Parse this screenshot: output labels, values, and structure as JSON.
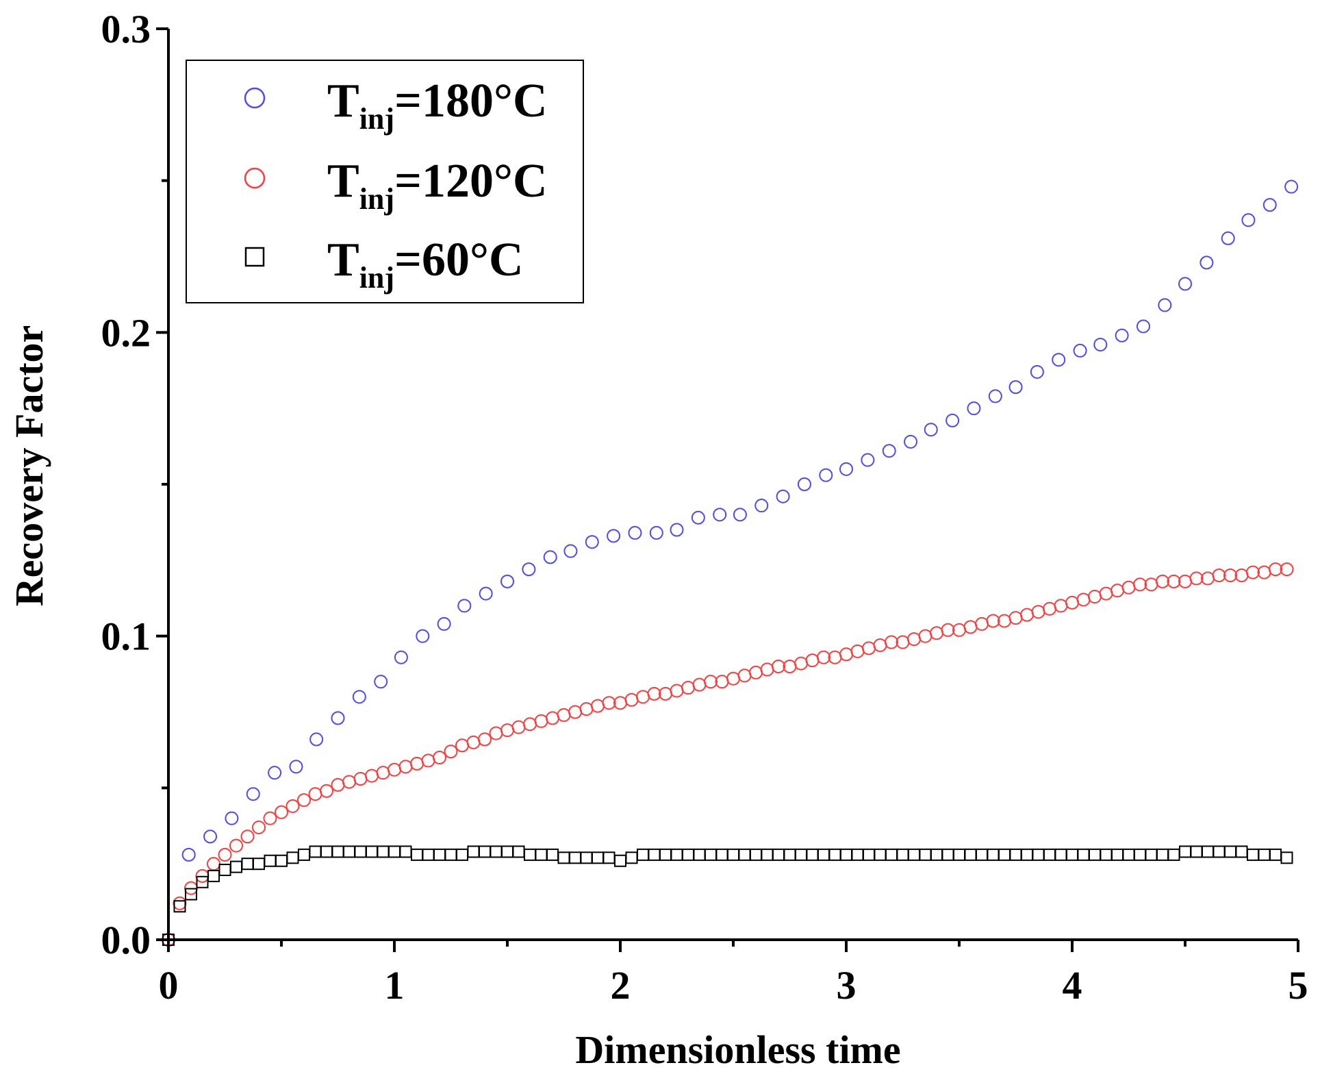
{
  "colors": {
    "t180": "#4a4aff",
    "t120": "#ff3b3b",
    "t60": "#000000",
    "axis": "#000000",
    "background": "#ffffff"
  },
  "chart_data": {
    "type": "scatter",
    "title": "",
    "xlabel": "Dimensionless time",
    "ylabel": "Recovery Factor",
    "xlim": [
      0,
      5
    ],
    "ylim": [
      0,
      0.3
    ],
    "x_ticks": [
      0,
      1,
      2,
      3,
      4,
      5
    ],
    "x_tick_labels": [
      "0",
      "1",
      "2",
      "3",
      "4",
      "5"
    ],
    "y_ticks": [
      0,
      0.1,
      0.2,
      0.3
    ],
    "y_tick_labels": [
      "0.0",
      "0.1",
      "0.2",
      "0.3"
    ],
    "legend_position": "top-left",
    "series": [
      {
        "name": "T_inj=180°C",
        "legend_main": "T",
        "legend_sub": "inj",
        "legend_rest": "=180°C",
        "marker": "circle",
        "color": "#4a4aff",
        "x": [
          0,
          0.09,
          0.185,
          0.28,
          0.375,
          0.47,
          0.565,
          0.655,
          0.75,
          0.845,
          0.94,
          1.03,
          1.125,
          1.22,
          1.31,
          1.405,
          1.5,
          1.595,
          1.69,
          1.78,
          1.875,
          1.97,
          2.065,
          2.16,
          2.25,
          2.345,
          2.44,
          2.53,
          2.625,
          2.72,
          2.815,
          2.91,
          3.0,
          3.095,
          3.19,
          3.285,
          3.375,
          3.47,
          3.565,
          3.66,
          3.75,
          3.845,
          3.94,
          4.035,
          4.125,
          4.22,
          4.315,
          4.41,
          4.5,
          4.595,
          4.69,
          4.78,
          4.875,
          4.97
        ],
        "y": [
          0,
          0.028,
          0.034,
          0.04,
          0.048,
          0.055,
          0.057,
          0.066,
          0.073,
          0.08,
          0.085,
          0.093,
          0.1,
          0.104,
          0.11,
          0.114,
          0.118,
          0.122,
          0.126,
          0.128,
          0.131,
          0.133,
          0.134,
          0.134,
          0.135,
          0.139,
          0.14,
          0.14,
          0.143,
          0.146,
          0.15,
          0.153,
          0.155,
          0.158,
          0.161,
          0.164,
          0.168,
          0.171,
          0.175,
          0.179,
          0.182,
          0.187,
          0.191,
          0.194,
          0.196,
          0.199,
          0.202,
          0.209,
          0.216,
          0.223,
          0.231,
          0.237,
          0.242,
          0.248
        ]
      },
      {
        "name": "T_inj=120°C",
        "legend_main": "T",
        "legend_sub": "inj",
        "legend_rest": "=120°C",
        "marker": "circle",
        "color": "#ff3b3b",
        "x": [
          0,
          0.05,
          0.1,
          0.15,
          0.2,
          0.25,
          0.3,
          0.35,
          0.4,
          0.45,
          0.5,
          0.55,
          0.6,
          0.65,
          0.7,
          0.75,
          0.8,
          0.85,
          0.9,
          0.95,
          1.0,
          1.05,
          1.1,
          1.15,
          1.2,
          1.25,
          1.3,
          1.35,
          1.4,
          1.45,
          1.5,
          1.55,
          1.6,
          1.65,
          1.7,
          1.75,
          1.8,
          1.85,
          1.9,
          1.95,
          2.0,
          2.05,
          2.1,
          2.15,
          2.2,
          2.25,
          2.3,
          2.35,
          2.4,
          2.45,
          2.5,
          2.55,
          2.6,
          2.65,
          2.7,
          2.75,
          2.8,
          2.85,
          2.9,
          2.95,
          3.0,
          3.05,
          3.1,
          3.15,
          3.2,
          3.25,
          3.3,
          3.35,
          3.4,
          3.45,
          3.5,
          3.55,
          3.6,
          3.65,
          3.7,
          3.75,
          3.8,
          3.85,
          3.9,
          3.95,
          4.0,
          4.05,
          4.1,
          4.15,
          4.2,
          4.25,
          4.3,
          4.35,
          4.4,
          4.45,
          4.5,
          4.55,
          4.6,
          4.65,
          4.7,
          4.75,
          4.8,
          4.85,
          4.9,
          4.95
        ],
        "y": [
          0,
          0.012,
          0.017,
          0.021,
          0.025,
          0.028,
          0.031,
          0.034,
          0.037,
          0.04,
          0.042,
          0.044,
          0.046,
          0.048,
          0.049,
          0.051,
          0.052,
          0.053,
          0.054,
          0.055,
          0.056,
          0.057,
          0.058,
          0.059,
          0.06,
          0.062,
          0.064,
          0.065,
          0.066,
          0.068,
          0.069,
          0.07,
          0.071,
          0.072,
          0.073,
          0.074,
          0.075,
          0.076,
          0.077,
          0.078,
          0.078,
          0.079,
          0.08,
          0.081,
          0.081,
          0.082,
          0.083,
          0.084,
          0.085,
          0.085,
          0.086,
          0.087,
          0.088,
          0.089,
          0.09,
          0.09,
          0.091,
          0.092,
          0.093,
          0.093,
          0.094,
          0.095,
          0.096,
          0.097,
          0.098,
          0.098,
          0.099,
          0.1,
          0.101,
          0.102,
          0.102,
          0.103,
          0.104,
          0.105,
          0.105,
          0.106,
          0.107,
          0.108,
          0.109,
          0.11,
          0.111,
          0.112,
          0.113,
          0.114,
          0.115,
          0.116,
          0.117,
          0.117,
          0.118,
          0.118,
          0.118,
          0.119,
          0.119,
          0.12,
          0.12,
          0.12,
          0.121,
          0.121,
          0.122,
          0.122
        ]
      },
      {
        "name": "T_inj=60°C",
        "legend_main": "T",
        "legend_sub": "inj",
        "legend_rest": "=60°C",
        "marker": "square",
        "color": "#000000",
        "x": [
          0,
          0.05,
          0.1,
          0.15,
          0.2,
          0.25,
          0.3,
          0.35,
          0.4,
          0.45,
          0.5,
          0.55,
          0.6,
          0.65,
          0.7,
          0.75,
          0.8,
          0.85,
          0.9,
          0.95,
          1.0,
          1.05,
          1.1,
          1.15,
          1.2,
          1.25,
          1.3,
          1.35,
          1.4,
          1.45,
          1.5,
          1.55,
          1.6,
          1.65,
          1.7,
          1.75,
          1.8,
          1.85,
          1.9,
          1.95,
          2.0,
          2.05,
          2.1,
          2.15,
          2.2,
          2.25,
          2.3,
          2.35,
          2.4,
          2.45,
          2.5,
          2.55,
          2.6,
          2.65,
          2.7,
          2.75,
          2.8,
          2.85,
          2.9,
          2.95,
          3.0,
          3.05,
          3.1,
          3.15,
          3.2,
          3.25,
          3.3,
          3.35,
          3.4,
          3.45,
          3.5,
          3.55,
          3.6,
          3.65,
          3.7,
          3.75,
          3.8,
          3.85,
          3.9,
          3.95,
          4.0,
          4.05,
          4.1,
          4.15,
          4.2,
          4.25,
          4.3,
          4.35,
          4.4,
          4.45,
          4.5,
          4.55,
          4.6,
          4.65,
          4.7,
          4.75,
          4.8,
          4.85,
          4.9,
          4.95
        ],
        "y": [
          0,
          0.011,
          0.015,
          0.019,
          0.021,
          0.023,
          0.024,
          0.025,
          0.025,
          0.026,
          0.026,
          0.027,
          0.028,
          0.029,
          0.029,
          0.029,
          0.029,
          0.029,
          0.029,
          0.029,
          0.029,
          0.029,
          0.028,
          0.028,
          0.028,
          0.028,
          0.028,
          0.029,
          0.029,
          0.029,
          0.029,
          0.029,
          0.028,
          0.028,
          0.028,
          0.027,
          0.027,
          0.027,
          0.027,
          0.027,
          0.026,
          0.027,
          0.028,
          0.028,
          0.028,
          0.028,
          0.028,
          0.028,
          0.028,
          0.028,
          0.028,
          0.028,
          0.028,
          0.028,
          0.028,
          0.028,
          0.028,
          0.028,
          0.028,
          0.028,
          0.028,
          0.028,
          0.028,
          0.028,
          0.028,
          0.028,
          0.028,
          0.028,
          0.028,
          0.028,
          0.028,
          0.028,
          0.028,
          0.028,
          0.028,
          0.028,
          0.028,
          0.028,
          0.028,
          0.028,
          0.028,
          0.028,
          0.028,
          0.028,
          0.028,
          0.028,
          0.028,
          0.028,
          0.028,
          0.028,
          0.029,
          0.029,
          0.029,
          0.029,
          0.029,
          0.029,
          0.028,
          0.028,
          0.028,
          0.027
        ]
      }
    ]
  }
}
